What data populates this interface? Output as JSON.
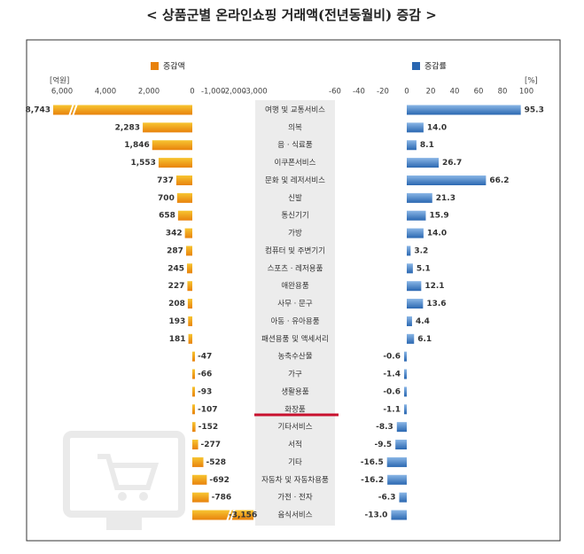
{
  "title": "< 상품군별 온라인쇼핑 거래액(전년동월비) 증감 >",
  "chart_data": [
    {
      "type": "bar",
      "orientation": "horizontal",
      "title": "증감액",
      "unit": "[억원]",
      "color": "#e8820c",
      "categories": [
        "여행 및 교통서비스",
        "의복",
        "음 · 식료품",
        "이쿠폰서비스",
        "문화 및 레저서비스",
        "신발",
        "통신기기",
        "가방",
        "컴퓨터 및 주변기기",
        "스포츠 · 레저용품",
        "애완용품",
        "사무 · 문구",
        "아동 · 유아용품",
        "패션용품 및 액세서리",
        "농축수산물",
        "가구",
        "생활용품",
        "화장품",
        "기타서비스",
        "서적",
        "기타",
        "자동차 및 자동차용품",
        "가전 · 전자",
        "음식서비스"
      ],
      "values": [
        8743,
        2283,
        1846,
        1553,
        737,
        700,
        658,
        342,
        287,
        245,
        227,
        208,
        193,
        181,
        -47,
        -66,
        -93,
        -107,
        -152,
        -277,
        -528,
        -692,
        -786,
        -3156
      ],
      "value_labels": [
        "8,743",
        "2,283",
        "1,846",
        "1,553",
        "737",
        "700",
        "658",
        "342",
        "287",
        "245",
        "227",
        "208",
        "193",
        "181",
        "-47",
        "-66",
        "-93",
        "-107",
        "-152",
        "-277",
        "-528",
        "-692",
        "-786",
        "-3,156"
      ],
      "xlim": [
        6000,
        0
      ],
      "xlim_negative": [
        0,
        -3000
      ],
      "xticks": [
        {
          "value": 6000,
          "label": "6,000"
        },
        {
          "value": 4000,
          "label": "4,000"
        },
        {
          "value": 2000,
          "label": "2,000"
        },
        0,
        {
          "value": -1000,
          "label": "-1,000"
        },
        {
          "value": -2000,
          "label": "-2,000"
        },
        {
          "value": -3000,
          "label": "-3,000"
        }
      ]
    },
    {
      "type": "bar",
      "orientation": "horizontal",
      "title": "증감률",
      "unit": "[%]",
      "color": "#2a67b1",
      "values": [
        95.3,
        14.0,
        8.1,
        26.7,
        66.2,
        21.3,
        15.9,
        14.0,
        3.2,
        5.1,
        12.1,
        13.6,
        4.4,
        6.1,
        -0.6,
        -1.4,
        -0.6,
        -1.1,
        -8.3,
        -9.5,
        -16.5,
        -16.2,
        -6.3,
        -13.0
      ],
      "value_labels": [
        "95.3",
        "14.0",
        "8.1",
        "26.7",
        "66.2",
        "21.3",
        "15.9",
        "14.0",
        "3.2",
        "5.1",
        "12.1",
        "13.6",
        "4.4",
        "6.1",
        "-0.6",
        "-1.4",
        "-0.6",
        "-1.1",
        "-8.3",
        "-9.5",
        "-16.5",
        "-16.2",
        "-6.3",
        "-13.0"
      ],
      "xlim": [
        -60,
        100
      ],
      "xticks": [
        -60,
        -40,
        -20,
        0,
        20,
        40,
        60,
        80,
        100
      ]
    }
  ]
}
